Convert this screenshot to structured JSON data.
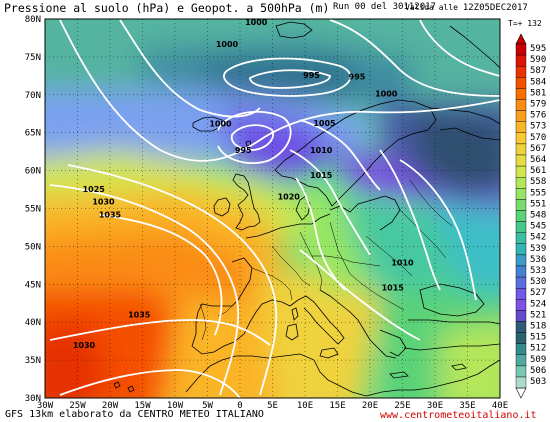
{
  "header": {
    "title": "Pressione al suolo (hPa) e Geopot. a 500hPa (m)",
    "run": "Run 00 del 30112017",
    "valid_prefix": "Valida alle",
    "valid_date": "12Z05DEC2017",
    "forecast_time": "T=+ 132"
  },
  "footer": {
    "credit": "GFS 13km elaborato da CENTRO METEO ITALIANO",
    "website": "www.centrometeoitaliano.it"
  },
  "map": {
    "lat_labels": [
      "80N",
      "75N",
      "70N",
      "65N",
      "60N",
      "55N",
      "50N",
      "45N",
      "40N",
      "35N",
      "30N"
    ],
    "lon_labels": [
      "30W",
      "25W",
      "20W",
      "15W",
      "10W",
      "5W",
      "0",
      "5E",
      "10E",
      "15E",
      "20E",
      "25E",
      "30E",
      "35E",
      "40E"
    ],
    "isobar_labels": [
      {
        "text": "1000",
        "lon": 2.5,
        "lat": 79.2
      },
      {
        "text": "1000",
        "lon": -2,
        "lat": 76.3
      },
      {
        "text": "995",
        "lon": 11,
        "lat": 72.2
      },
      {
        "text": "995",
        "lon": 18,
        "lat": 72.0
      },
      {
        "text": "1000",
        "lon": 22.5,
        "lat": 69.8
      },
      {
        "text": "1000",
        "lon": -3,
        "lat": 65.8
      },
      {
        "text": "995",
        "lon": 0.5,
        "lat": 62.3
      },
      {
        "text": "1005",
        "lon": 13,
        "lat": 65.9
      },
      {
        "text": "1010",
        "lon": 12.5,
        "lat": 62.3
      },
      {
        "text": "1015",
        "lon": 12.5,
        "lat": 59.0
      },
      {
        "text": "1020",
        "lon": 7.5,
        "lat": 56.2
      },
      {
        "text": "1025",
        "lon": -22.5,
        "lat": 57.2
      },
      {
        "text": "1030",
        "lon": -21,
        "lat": 55.5
      },
      {
        "text": "1035",
        "lon": -20,
        "lat": 53.8
      },
      {
        "text": "1010",
        "lon": 25,
        "lat": 47.5
      },
      {
        "text": "1015",
        "lon": 23.5,
        "lat": 44.2
      },
      {
        "text": "1035",
        "lon": -15.5,
        "lat": 40.6
      },
      {
        "text": "1030",
        "lon": -24,
        "lat": 36.6
      }
    ]
  },
  "legend": {
    "values": [
      595,
      590,
      587,
      584,
      581,
      579,
      576,
      573,
      570,
      567,
      564,
      561,
      558,
      555,
      551,
      548,
      545,
      542,
      539,
      536,
      533,
      530,
      527,
      524,
      521,
      518,
      515,
      512,
      509,
      506,
      503
    ],
    "colors": [
      "#c80000",
      "#dc1400",
      "#eb3200",
      "#f55000",
      "#fa6e00",
      "#fa8c14",
      "#faa01e",
      "#fab428",
      "#fac832",
      "#f0d23c",
      "#e6dc46",
      "#d2e650",
      "#b4e65a",
      "#96e664",
      "#78dc6e",
      "#5ad278",
      "#46c88c",
      "#3cbea0",
      "#32b4b4",
      "#3c9bc8",
      "#4682d2",
      "#5a6edc",
      "#6e5ae6",
      "#7d50e6",
      "#644bc8",
      "#2d5a78",
      "#28646e",
      "#328c8c",
      "#50aaa0",
      "#78c8b4",
      "#aadcc8"
    ]
  }
}
